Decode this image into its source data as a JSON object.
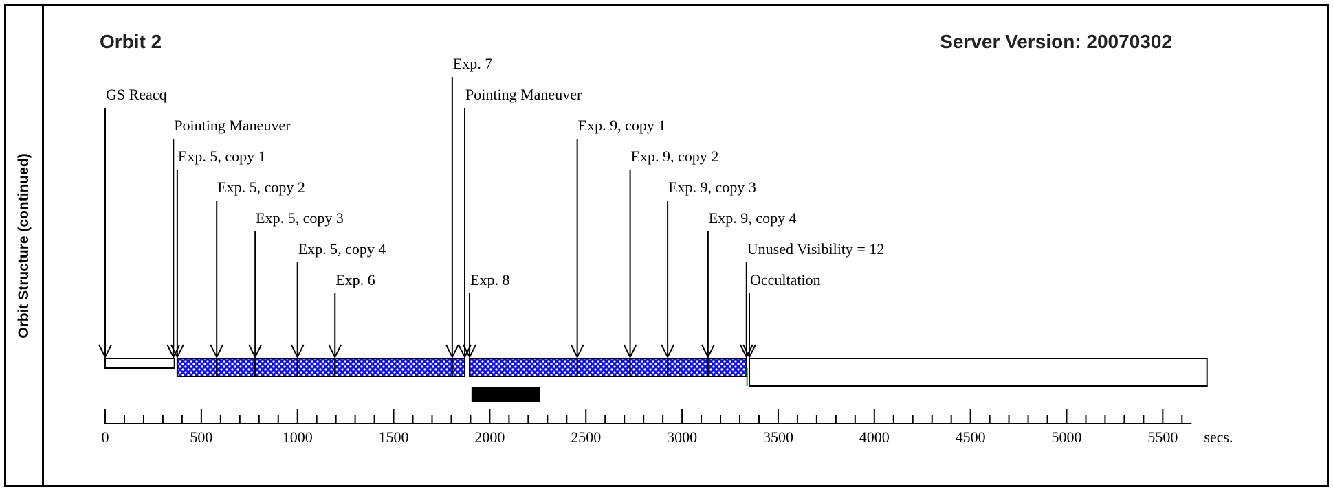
{
  "side_label": "Orbit Structure (continued)",
  "orbit_title": "Orbit 2",
  "server_version": "Server Version: 20070302",
  "colors": {
    "segment_fill": "#1414d8",
    "segment_dots": "#ffffff",
    "bar": "#000000",
    "marker": "#00a000"
  },
  "chart_data": {
    "type": "timeline",
    "x_unit": "secs.",
    "xlim": [
      0,
      5650
    ],
    "ticks": [
      {
        "v": 0,
        "label": "0"
      },
      {
        "v": 500,
        "label": "500"
      },
      {
        "v": 1000,
        "label": "1000"
      },
      {
        "v": 1500,
        "label": "1500"
      },
      {
        "v": 2000,
        "label": "2000"
      },
      {
        "v": 2500,
        "label": "2500"
      },
      {
        "v": 3000,
        "label": "3000"
      },
      {
        "v": 3500,
        "label": "3500"
      },
      {
        "v": 4000,
        "label": "4000"
      },
      {
        "v": 4500,
        "label": "4500"
      },
      {
        "v": 5000,
        "label": "5000"
      },
      {
        "v": 5500,
        "label": "5500"
      }
    ],
    "events": [
      {
        "label": "GS Reacq",
        "t": 0
      },
      {
        "label": "Pointing Maneuver",
        "t": 355
      },
      {
        "label": "Exp. 5, copy 1",
        "t": 375
      },
      {
        "label": "Exp. 5, copy 2",
        "t": 580
      },
      {
        "label": "Exp. 5, copy 3",
        "t": 780
      },
      {
        "label": "Exp. 5, copy 4",
        "t": 1000
      },
      {
        "label": "Exp. 6",
        "t": 1195
      },
      {
        "label": "Exp. 7",
        "t": 1805
      },
      {
        "label": "Pointing Maneuver",
        "t": 1870
      },
      {
        "label": "Exp. 8",
        "t": 1895
      },
      {
        "label": "Exp. 9, copy 1",
        "t": 2455
      },
      {
        "label": "Exp. 9, copy 2",
        "t": 2730
      },
      {
        "label": "Exp. 9, copy 3",
        "t": 2925
      },
      {
        "label": "Exp. 9, copy 4",
        "t": 3135
      },
      {
        "label": "Unused Visibility = 12",
        "t": 3335
      },
      {
        "label": "Occultation",
        "t": 3350
      }
    ],
    "segments": [
      {
        "start": 0,
        "end": 360,
        "style": "blank"
      },
      {
        "start": 375,
        "end": 580,
        "style": "exposure"
      },
      {
        "start": 580,
        "end": 780,
        "style": "exposure"
      },
      {
        "start": 780,
        "end": 1000,
        "style": "exposure"
      },
      {
        "start": 1000,
        "end": 1195,
        "style": "exposure"
      },
      {
        "start": 1195,
        "end": 1805,
        "style": "exposure"
      },
      {
        "start": 1805,
        "end": 1870,
        "style": "exposure"
      },
      {
        "start": 1895,
        "end": 2455,
        "style": "exposure"
      },
      {
        "start": 2455,
        "end": 2730,
        "style": "exposure"
      },
      {
        "start": 2730,
        "end": 2925,
        "style": "exposure"
      },
      {
        "start": 2925,
        "end": 3135,
        "style": "exposure"
      },
      {
        "start": 3135,
        "end": 3335,
        "style": "exposure"
      },
      {
        "start": 3350,
        "end": 5730,
        "style": "blank"
      }
    ],
    "black_bar": {
      "start": 1905,
      "end": 2260
    },
    "green_marker": {
      "t": 3338
    }
  }
}
